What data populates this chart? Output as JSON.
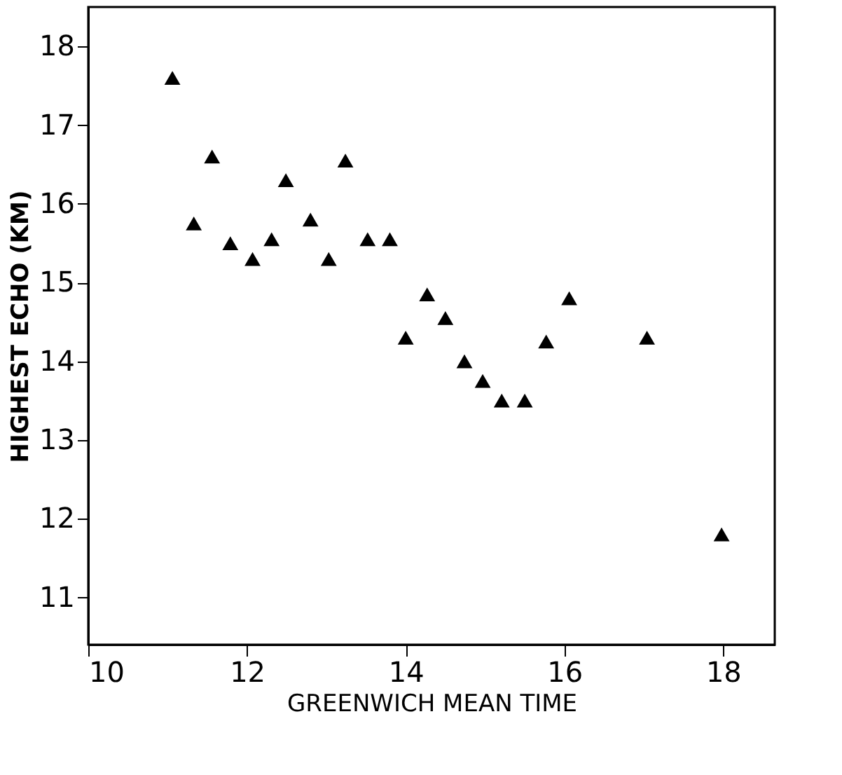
{
  "chart_data": {
    "type": "scatter",
    "xlabel": "GREENWICH MEAN TIME",
    "ylabel": "HIGHEST ECHO (KM)",
    "x": [
      11.06,
      11.33,
      11.56,
      11.79,
      12.07,
      12.31,
      12.49,
      12.8,
      13.03,
      13.24,
      13.52,
      13.8,
      14.0,
      14.27,
      14.5,
      14.74,
      14.97,
      15.21,
      15.5,
      15.77,
      16.06,
      17.04,
      17.98
    ],
    "series": [
      {
        "color": "#000000",
        "values": [
          17.6,
          15.75,
          16.6,
          15.5,
          15.3,
          15.55,
          16.3,
          15.8,
          15.3,
          16.55,
          15.55,
          15.55,
          14.3,
          14.85,
          14.55,
          14.0,
          13.75,
          13.5,
          13.5,
          14.25,
          14.8,
          14.3,
          11.8
        ]
      }
    ],
    "xlim": [
      10,
      18.65
    ],
    "ylim": [
      10.4,
      18.5
    ],
    "xticks": [
      10,
      12,
      14,
      16,
      18
    ],
    "yticks": [
      11,
      12,
      13,
      14,
      15,
      16,
      17,
      18
    ],
    "marker": "triangle",
    "grid": false
  }
}
